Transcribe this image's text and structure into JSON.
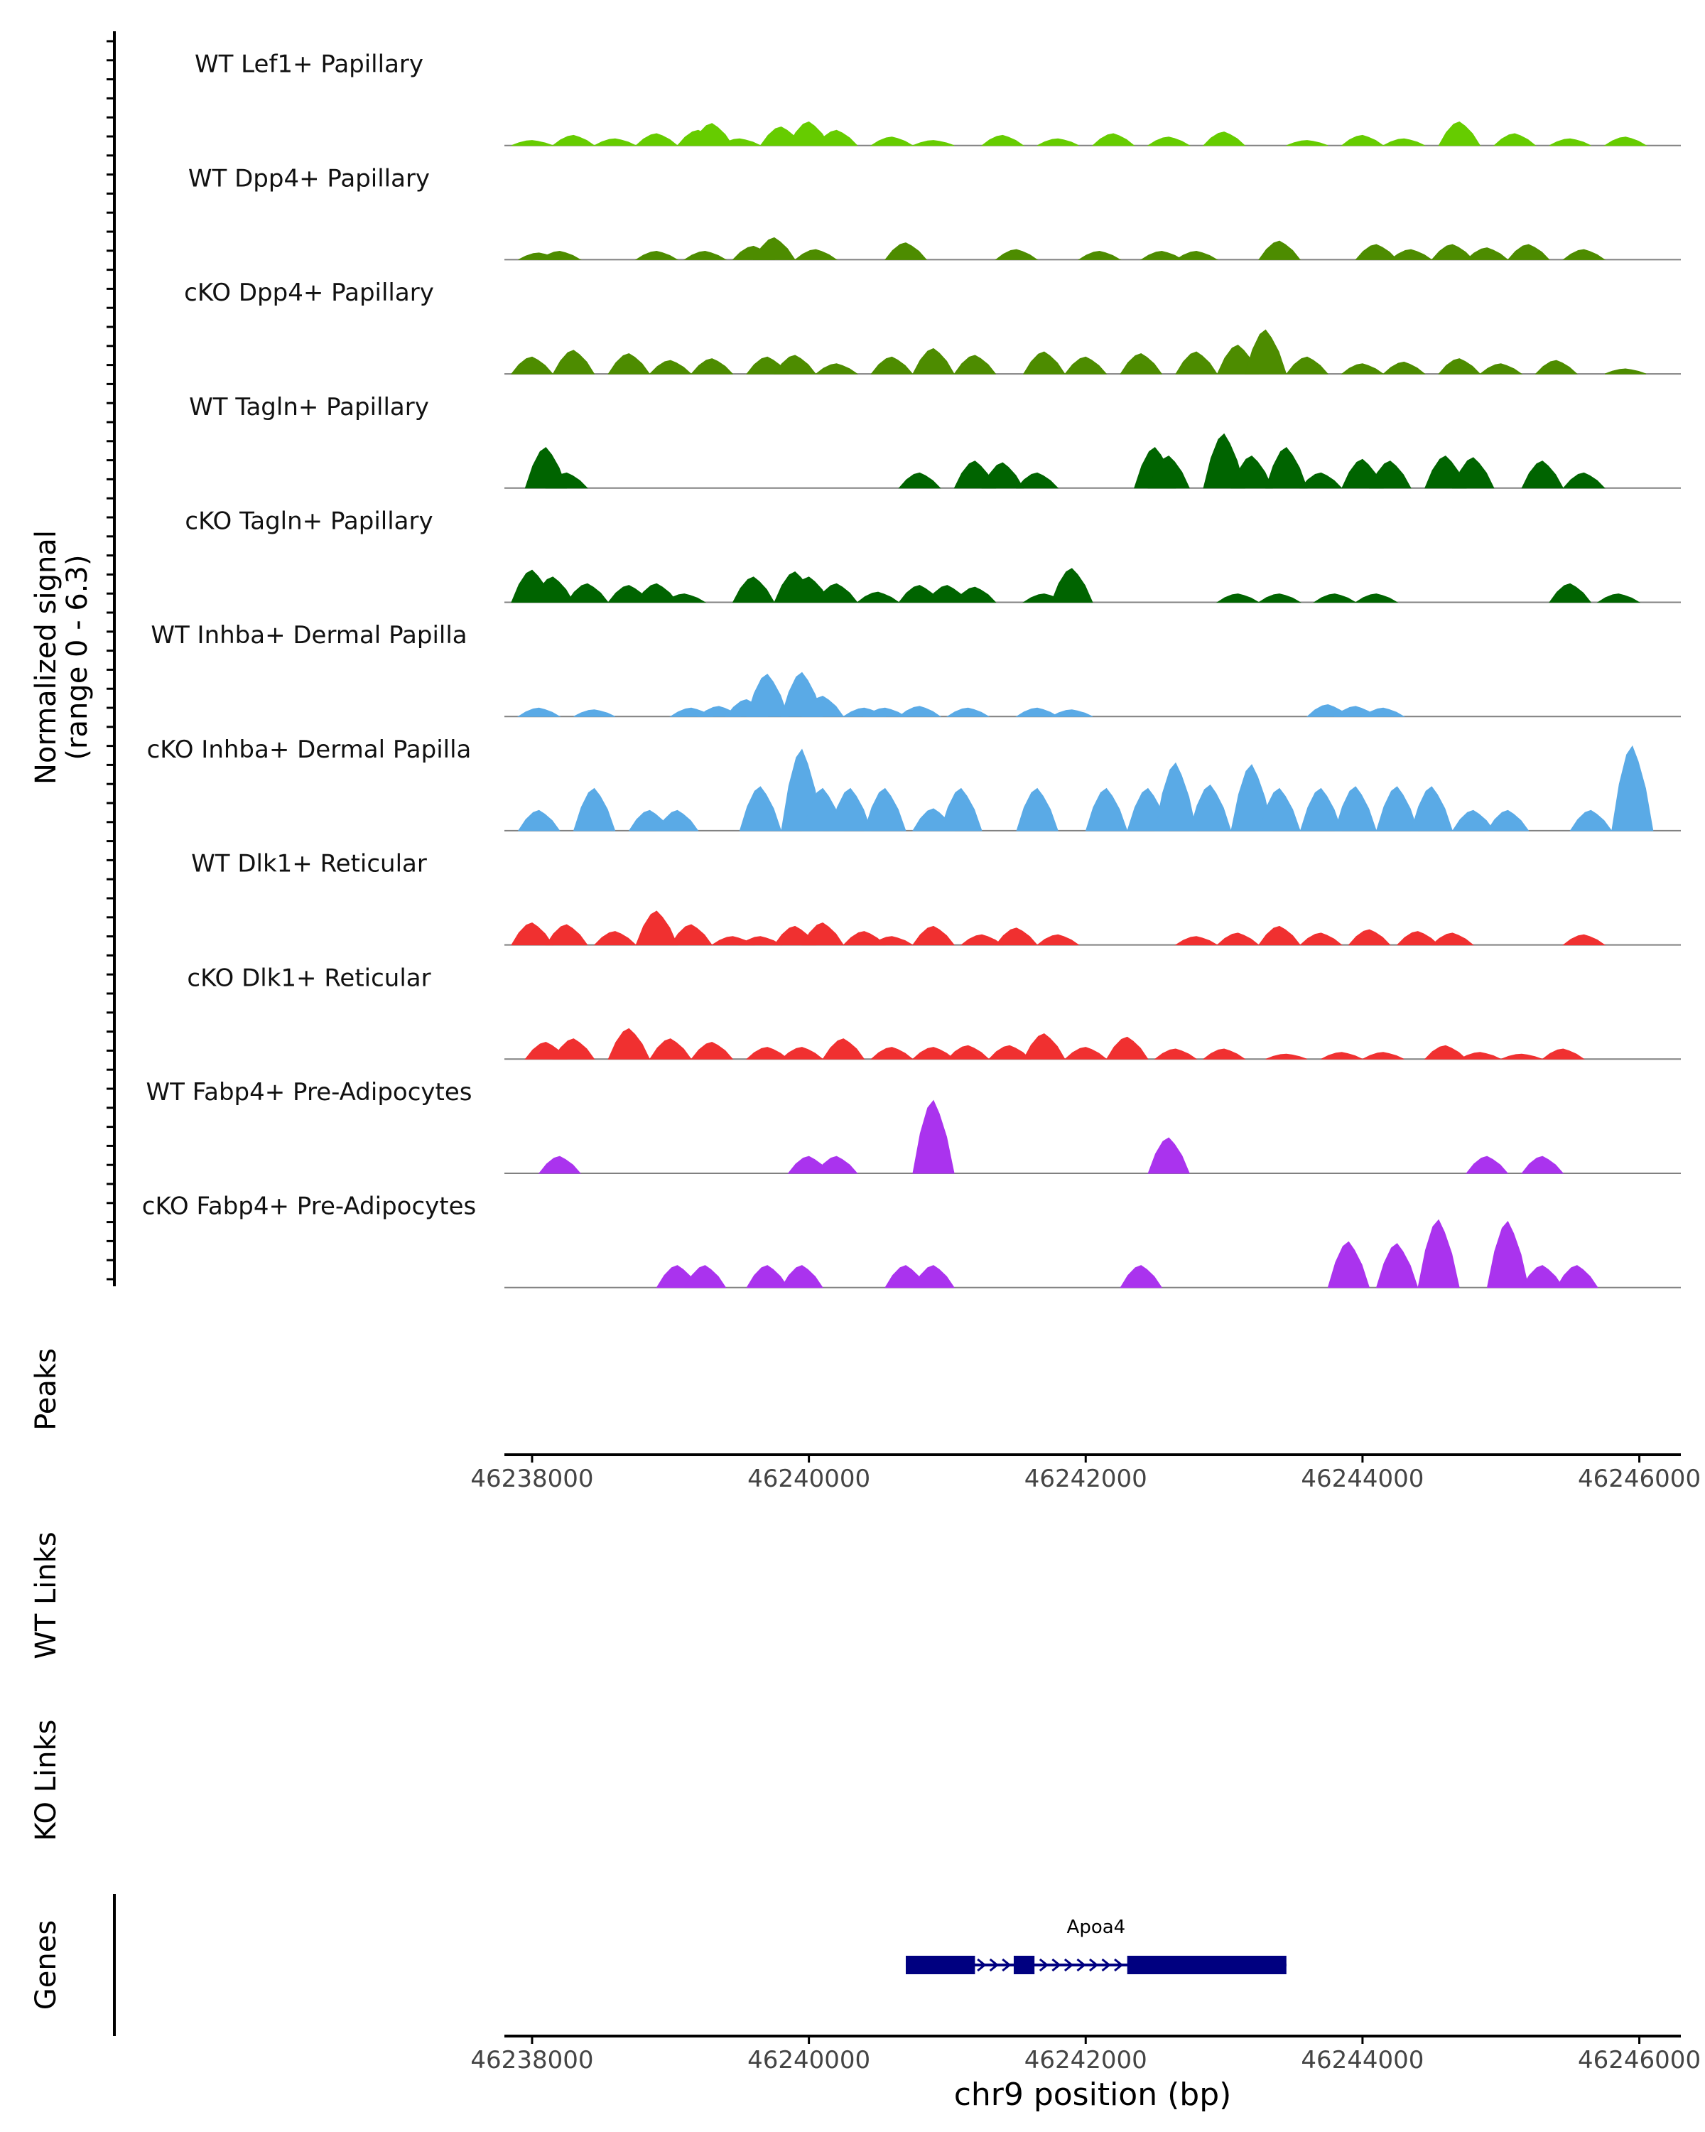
{
  "chart_data": {
    "type": "area",
    "chromosome": "chr9",
    "xlim": [
      46237800,
      46246300
    ],
    "xticks": [
      46238000,
      46240000,
      46242000,
      46244000,
      46246000
    ],
    "xtick_labels": [
      "46238000",
      "46240000",
      "46242000",
      "46244000",
      "46246000"
    ],
    "xlabel": "chr9 position (bp)",
    "ylabel_line1": "Normalized signal",
    "ylabel_line2": "(range 0 - 6.3)",
    "ylim": [
      0,
      6.3
    ],
    "panel_labels": {
      "peaks": "Peaks",
      "wt_links": "WT Links",
      "ko_links": "KO Links",
      "genes": "Genes"
    },
    "series": [
      {
        "name": "WT Lef1+ Papillary",
        "color": "#66cc00",
        "x": [
          46238000,
          46238300,
          46238600,
          46238900,
          46239200,
          46239300,
          46239500,
          46239800,
          46240000,
          46240200,
          46240600,
          46240900,
          46241400,
          46241800,
          46242200,
          46242600,
          46243000,
          46243600,
          46244000,
          46244300,
          46244700,
          46245100,
          46245500,
          46245900
        ],
        "values": [
          0.3,
          0.6,
          0.4,
          0.7,
          0.9,
          1.3,
          0.4,
          1.1,
          1.4,
          0.9,
          0.5,
          0.3,
          0.6,
          0.4,
          0.7,
          0.5,
          0.8,
          0.3,
          0.6,
          0.4,
          1.4,
          0.7,
          0.4,
          0.5
        ]
      },
      {
        "name": "WT Dpp4+ Papillary",
        "color": "#4d8c00",
        "x": [
          46238050,
          46238200,
          46238900,
          46239250,
          46239600,
          46239750,
          46240050,
          46240700,
          46241500,
          46242100,
          46242550,
          46242800,
          46243400,
          46244100,
          46244350,
          46244650,
          46244900,
          46245200,
          46245600
        ],
        "values": [
          0.4,
          0.5,
          0.5,
          0.5,
          0.8,
          1.3,
          0.6,
          1.0,
          0.6,
          0.5,
          0.5,
          0.5,
          1.1,
          0.9,
          0.6,
          0.9,
          0.7,
          0.9,
          0.6
        ]
      },
      {
        "name": "cKO Dpp4+ Papillary",
        "color": "#4d8c00",
        "x": [
          46238000,
          46238300,
          46238700,
          46239000,
          46239300,
          46239700,
          46239900,
          46240200,
          46240600,
          46240900,
          46241200,
          46241700,
          46242000,
          46242400,
          46242800,
          46243100,
          46243300,
          46243600,
          46244000,
          46244300,
          46244700,
          46245000,
          46245400,
          46245900
        ],
        "values": [
          1.0,
          1.4,
          1.2,
          0.8,
          0.9,
          1.0,
          1.1,
          0.6,
          1.0,
          1.5,
          1.1,
          1.3,
          1.0,
          1.2,
          1.3,
          1.7,
          2.6,
          1.0,
          0.6,
          0.7,
          0.9,
          0.6,
          0.8,
          0.3
        ]
      },
      {
        "name": "WT Tagln+ Papillary",
        "color": "#006400",
        "x": [
          46238100,
          46238250,
          46240800,
          46241200,
          46241400,
          46241650,
          46242500,
          46242600,
          46243000,
          46243200,
          46243450,
          46243700,
          46244000,
          46244200,
          46244600,
          46244800,
          46245300,
          46245600
        ],
        "values": [
          2.4,
          0.9,
          0.9,
          1.6,
          1.5,
          0.9,
          2.4,
          1.9,
          3.2,
          1.9,
          2.4,
          0.9,
          1.7,
          1.6,
          1.9,
          1.8,
          1.6,
          0.9
        ]
      },
      {
        "name": "cKO Tagln+ Papillary",
        "color": "#006400",
        "x": [
          46238000,
          46238150,
          46238400,
          46238700,
          46238900,
          46239100,
          46239600,
          46239900,
          46240000,
          46240200,
          46240500,
          46240800,
          46241000,
          46241200,
          46241700,
          46241900,
          46243100,
          46243400,
          46243800,
          46244100,
          46245500,
          46245850
        ],
        "values": [
          1.9,
          1.5,
          1.1,
          1.0,
          1.1,
          0.5,
          1.5,
          1.8,
          1.5,
          1.1,
          0.6,
          1.0,
          1.0,
          0.9,
          0.5,
          2.0,
          0.5,
          0.5,
          0.5,
          0.5,
          1.1,
          0.5
        ]
      },
      {
        "name": "WT Inhba+ Dermal Papilla",
        "color": "#5aaae6",
        "x": [
          46238050,
          46238450,
          46239150,
          46239350,
          46239550,
          46239700,
          46239950,
          46240100,
          46240400,
          46240550,
          46240800,
          46241150,
          46241650,
          46241900,
          46243750,
          46243950,
          46244150
        ],
        "values": [
          0.5,
          0.4,
          0.5,
          0.6,
          1.0,
          2.5,
          2.6,
          1.2,
          0.5,
          0.5,
          0.6,
          0.5,
          0.5,
          0.4,
          0.7,
          0.6,
          0.5
        ]
      },
      {
        "name": "cKO Inhba+ Dermal Papilla",
        "color": "#5aaae6",
        "x": [
          46238050,
          46238450,
          46238850,
          46239050,
          46239650,
          46239950,
          46240100,
          46240300,
          46240550,
          46240900,
          46241100,
          46241650,
          46242150,
          46242450,
          46242650,
          46242900,
          46243200,
          46243400,
          46243700,
          46243950,
          46244250,
          46244500,
          46244800,
          46245050,
          46245650,
          46245950
        ],
        "values": [
          1.2,
          2.5,
          1.2,
          1.2,
          2.6,
          4.8,
          2.5,
          2.5,
          2.5,
          1.3,
          2.5,
          2.5,
          2.5,
          2.5,
          4.0,
          2.7,
          3.9,
          2.5,
          2.5,
          2.6,
          2.6,
          2.6,
          1.2,
          1.2,
          1.2,
          5.0
        ]
      },
      {
        "name": "WT Dlk1+ Reticular",
        "color": "#f03030",
        "x": [
          46238000,
          46238250,
          46238600,
          46238900,
          46239150,
          46239450,
          46239650,
          46239900,
          46240100,
          46240400,
          46240600,
          46240900,
          46241250,
          46241500,
          46241800,
          46242800,
          46243100,
          46243400,
          46243700,
          46244050,
          46244400,
          46244650,
          46245600
        ],
        "values": [
          1.3,
          1.2,
          0.8,
          2.0,
          1.2,
          0.5,
          0.5,
          1.1,
          1.3,
          0.8,
          0.5,
          1.1,
          0.6,
          1.0,
          0.6,
          0.5,
          0.7,
          1.1,
          0.7,
          0.9,
          0.8,
          0.7,
          0.6
        ]
      },
      {
        "name": "cKO Dlk1+ Reticular",
        "color": "#f03030",
        "x": [
          46238100,
          46238300,
          46238700,
          46239000,
          46239300,
          46239700,
          46239950,
          46240250,
          46240600,
          46240900,
          46241150,
          46241450,
          46241700,
          46242000,
          46242300,
          46242650,
          46243000,
          46243450,
          46243850,
          46244150,
          46244600,
          46244850,
          46245150,
          46245450
        ],
        "values": [
          1.0,
          1.2,
          1.8,
          1.2,
          1.0,
          0.7,
          0.7,
          1.2,
          0.7,
          0.7,
          0.8,
          0.8,
          1.5,
          0.7,
          1.3,
          0.6,
          0.6,
          0.3,
          0.4,
          0.4,
          0.8,
          0.4,
          0.3,
          0.6
        ]
      },
      {
        "name": "WT Fabp4+ Pre-Adipocytes",
        "color": "#aa33ee",
        "x": [
          46238200,
          46240000,
          46240200,
          46240900,
          46242600,
          46244900,
          46245300
        ],
        "values": [
          1.0,
          1.0,
          1.0,
          4.3,
          2.1,
          1.0,
          1.0
        ]
      },
      {
        "name": "cKO Fabp4+ Pre-Adipocytes",
        "color": "#aa33ee",
        "x": [
          46239050,
          46239250,
          46239700,
          46239950,
          46240700,
          46240900,
          46242400,
          46243900,
          46244250,
          46244550,
          46245050,
          46245300,
          46245550
        ],
        "values": [
          1.3,
          1.3,
          1.3,
          1.3,
          1.3,
          1.3,
          1.3,
          2.7,
          2.6,
          4.0,
          3.9,
          1.3,
          1.3
        ]
      }
    ],
    "gene": {
      "name": "Apoa4",
      "start": 46240700,
      "end": 46243450,
      "strand": "+",
      "exons": [
        [
          46240700,
          46241200
        ],
        [
          46241480,
          46241630
        ],
        [
          46242300,
          46243450
        ]
      ],
      "color": "#000080"
    }
  }
}
